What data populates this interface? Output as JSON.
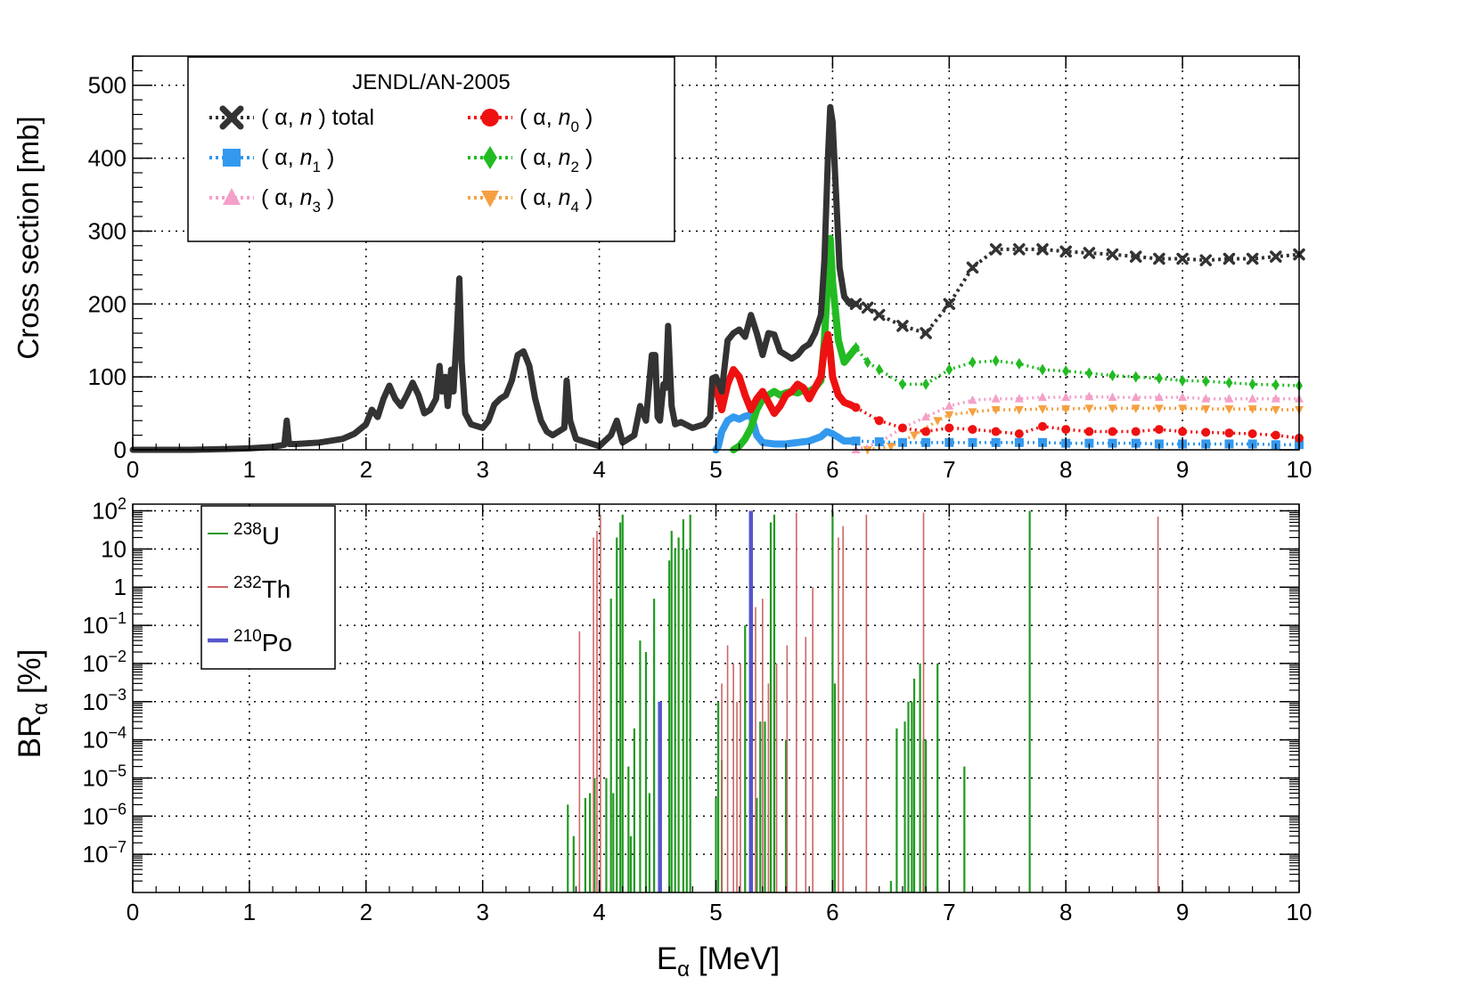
{
  "chart_data": [
    {
      "type": "line",
      "title": "",
      "xlabel": "",
      "ylabel": "Cross section [mb]",
      "xlim": [
        0,
        10
      ],
      "ylim": [
        0,
        540
      ],
      "grid": true,
      "x_ticks": [
        0,
        1,
        2,
        3,
        4,
        5,
        6,
        7,
        8,
        9,
        10
      ],
      "x_tick_labels": [
        "0",
        "1",
        "2",
        "3",
        "4",
        "5",
        "6",
        "7",
        "8",
        "9",
        "10"
      ],
      "y_ticks": [
        0,
        100,
        200,
        300,
        400,
        500
      ],
      "y_tick_labels": [
        "0",
        "100",
        "200",
        "300",
        "400",
        "500"
      ],
      "legend": {
        "title": "JENDL/AN-2005",
        "position": "top-left",
        "entries": [
          {
            "id": "total",
            "pre": "( α, ",
            "italic": "n",
            "sub": "",
            "post": " ) total",
            "color": "#333333",
            "marker": "x"
          },
          {
            "id": "n0",
            "pre": "( α, ",
            "italic": "n",
            "sub": "0",
            "post": " )",
            "color": "#ee1111",
            "marker": "circle"
          },
          {
            "id": "n1",
            "pre": "( α, ",
            "italic": "n",
            "sub": "1",
            "post": " )",
            "color": "#3399ee",
            "marker": "square"
          },
          {
            "id": "n2",
            "pre": "( α, ",
            "italic": "n",
            "sub": "2",
            "post": " )",
            "color": "#22bb22",
            "marker": "diamond"
          },
          {
            "id": "n3",
            "pre": "( α, ",
            "italic": "n",
            "sub": "3",
            "post": " )",
            "color": "#f4a0c8",
            "marker": "triangle-up"
          },
          {
            "id": "n4",
            "pre": "( α, ",
            "italic": "n",
            "sub": "4",
            "post": " )",
            "color": "#f5a040",
            "marker": "triangle-down"
          }
        ]
      },
      "series": [
        {
          "name": "(α, n) total",
          "id": "total",
          "color": "#333333",
          "x": [
            0.0,
            0.5,
            0.8,
            1.0,
            1.2,
            1.3,
            1.32,
            1.34,
            1.4,
            1.6,
            1.8,
            1.9,
            2.0,
            2.05,
            2.1,
            2.15,
            2.2,
            2.25,
            2.3,
            2.35,
            2.4,
            2.45,
            2.5,
            2.55,
            2.6,
            2.63,
            2.65,
            2.68,
            2.7,
            2.73,
            2.75,
            2.78,
            2.8,
            2.82,
            2.85,
            2.9,
            3.0,
            3.05,
            3.1,
            3.15,
            3.2,
            3.25,
            3.3,
            3.35,
            3.4,
            3.45,
            3.5,
            3.55,
            3.6,
            3.65,
            3.7,
            3.72,
            3.75,
            3.8,
            3.9,
            4.0,
            4.1,
            4.15,
            4.2,
            4.3,
            4.35,
            4.4,
            4.45,
            4.48,
            4.5,
            4.52,
            4.55,
            4.57,
            4.59,
            4.62,
            4.65,
            4.7,
            4.8,
            4.9,
            4.95,
            4.97,
            5.0,
            5.05,
            5.1,
            5.15,
            5.2,
            5.25,
            5.3,
            5.35,
            5.4,
            5.45,
            5.5,
            5.55,
            5.6,
            5.65,
            5.7,
            5.75,
            5.8,
            5.85,
            5.9,
            5.93,
            5.96,
            5.98,
            6.0,
            6.03,
            6.06,
            6.1,
            6.15,
            6.2,
            6.3,
            6.4,
            6.6,
            6.8,
            7.0,
            7.2,
            7.4,
            7.6,
            7.8,
            8.0,
            8.2,
            8.4,
            8.6,
            8.8,
            9.0,
            9.2,
            9.4,
            9.6,
            9.8,
            10.0
          ],
          "y": [
            0,
            0,
            1,
            2,
            4,
            7,
            40,
            8,
            8,
            10,
            15,
            22,
            35,
            55,
            45,
            70,
            88,
            70,
            60,
            75,
            92,
            75,
            50,
            55,
            70,
            115,
            80,
            100,
            60,
            110,
            80,
            165,
            235,
            120,
            50,
            35,
            30,
            40,
            62,
            70,
            75,
            95,
            130,
            135,
            115,
            70,
            40,
            25,
            20,
            25,
            30,
            95,
            40,
            15,
            10,
            5,
            20,
            40,
            10,
            20,
            60,
            40,
            130,
            130,
            45,
            40,
            90,
            85,
            170,
            60,
            35,
            38,
            30,
            35,
            45,
            98,
            100,
            80,
            150,
            160,
            165,
            155,
            185,
            160,
            130,
            160,
            158,
            135,
            130,
            125,
            130,
            140,
            145,
            160,
            185,
            260,
            400,
            470,
            450,
            350,
            250,
            210,
            200,
            200,
            195,
            185,
            170,
            160,
            200,
            250,
            275,
            275,
            275,
            272,
            270,
            268,
            265,
            262,
            262,
            260,
            262,
            262,
            265,
            268
          ]
        },
        {
          "name": "(α, n0)",
          "id": "n0",
          "color": "#ee1111",
          "x": [
            5.0,
            5.05,
            5.1,
            5.15,
            5.2,
            5.25,
            5.3,
            5.35,
            5.4,
            5.45,
            5.5,
            5.55,
            5.6,
            5.65,
            5.7,
            5.75,
            5.8,
            5.85,
            5.9,
            5.93,
            5.96,
            5.98,
            6.0,
            6.05,
            6.1,
            6.15,
            6.2,
            6.4,
            6.6,
            6.8,
            7.0,
            7.2,
            7.4,
            7.6,
            7.8,
            8.0,
            8.2,
            8.4,
            8.6,
            8.8,
            9.0,
            9.2,
            9.4,
            9.6,
            9.8,
            10.0
          ],
          "y": [
            85,
            55,
            90,
            110,
            100,
            75,
            55,
            70,
            80,
            65,
            50,
            60,
            75,
            80,
            90,
            85,
            70,
            85,
            100,
            140,
            158,
            135,
            100,
            75,
            65,
            62,
            58,
            40,
            30,
            25,
            30,
            28,
            25,
            22,
            32,
            28,
            25,
            25,
            25,
            28,
            25,
            24,
            23,
            22,
            20,
            16
          ]
        },
        {
          "name": "(α, n1)",
          "id": "n1",
          "color": "#3399ee",
          "x": [
            5.0,
            5.02,
            5.05,
            5.1,
            5.15,
            5.2,
            5.25,
            5.3,
            5.35,
            5.4,
            5.5,
            5.6,
            5.7,
            5.8,
            5.9,
            5.95,
            6.0,
            6.1,
            6.2,
            6.4,
            6.6,
            6.8,
            7.0,
            7.2,
            7.4,
            7.6,
            7.8,
            8.0,
            8.2,
            8.4,
            8.6,
            8.8,
            9.0,
            9.2,
            9.4,
            9.6,
            9.8,
            10.0
          ],
          "y": [
            0,
            5,
            25,
            40,
            45,
            42,
            46,
            48,
            20,
            10,
            8,
            8,
            10,
            12,
            18,
            25,
            22,
            12,
            12,
            11,
            10,
            10,
            10,
            10,
            10,
            10,
            10,
            9,
            9,
            9,
            9,
            8,
            8,
            8,
            8,
            8,
            7,
            7
          ]
        },
        {
          "name": "(α, n2)",
          "id": "n2",
          "color": "#22bb22",
          "x": [
            5.15,
            5.2,
            5.25,
            5.3,
            5.35,
            5.4,
            5.45,
            5.5,
            5.55,
            5.6,
            5.65,
            5.7,
            5.75,
            5.8,
            5.85,
            5.9,
            5.93,
            5.96,
            5.98,
            6.0,
            6.05,
            6.1,
            6.15,
            6.2,
            6.3,
            6.4,
            6.6,
            6.8,
            7.0,
            7.2,
            7.4,
            7.6,
            7.8,
            8.0,
            8.2,
            8.4,
            8.6,
            8.8,
            9.0,
            9.2,
            9.4,
            9.6,
            9.8,
            10.0
          ],
          "y": [
            0,
            5,
            15,
            30,
            55,
            70,
            75,
            80,
            75,
            78,
            80,
            78,
            82,
            80,
            85,
            95,
            150,
            240,
            290,
            230,
            150,
            120,
            130,
            140,
            120,
            110,
            90,
            90,
            110,
            120,
            122,
            118,
            110,
            108,
            105,
            102,
            100,
            98,
            95,
            94,
            92,
            90,
            89,
            88
          ]
        },
        {
          "name": "(α, n3)",
          "id": "n3",
          "color": "#f4a0c8",
          "x": [
            6.2,
            6.4,
            6.6,
            6.8,
            7.0,
            7.2,
            7.4,
            7.6,
            7.8,
            8.0,
            8.2,
            8.4,
            8.6,
            8.8,
            9.0,
            9.2,
            9.4,
            9.6,
            9.8,
            10.0
          ],
          "y": [
            0,
            10,
            30,
            45,
            60,
            68,
            70,
            70,
            72,
            72,
            73,
            72,
            72,
            72,
            72,
            70,
            70,
            70,
            70,
            70
          ]
        },
        {
          "name": "(α, n4)",
          "id": "n4",
          "color": "#f5a040",
          "x": [
            6.3,
            6.5,
            6.7,
            6.9,
            7.0,
            7.2,
            7.4,
            7.6,
            7.8,
            8.0,
            8.2,
            8.4,
            8.6,
            8.8,
            9.0,
            9.2,
            9.4,
            9.6,
            9.8,
            10.0
          ],
          "y": [
            0,
            5,
            20,
            40,
            48,
            52,
            55,
            55,
            56,
            56,
            57,
            57,
            57,
            57,
            57,
            56,
            56,
            56,
            55,
            55
          ]
        }
      ]
    },
    {
      "type": "bar",
      "title": "",
      "xlabel_base": "E",
      "xlabel_sub": "α",
      "xlabel_post": " [MeV]",
      "ylabel_base": "BR",
      "ylabel_sub": "α",
      "ylabel_post": " [%]",
      "y_scale": "log",
      "xlim": [
        0,
        10
      ],
      "ylim": [
        1e-08,
        150
      ],
      "grid": true,
      "x_ticks": [
        0,
        1,
        2,
        3,
        4,
        5,
        6,
        7,
        8,
        9,
        10
      ],
      "x_tick_labels": [
        "0",
        "1",
        "2",
        "3",
        "4",
        "5",
        "6",
        "7",
        "8",
        "9",
        "10"
      ],
      "y_ticks": [
        {
          "value": 100,
          "base": "10",
          "exp": "2",
          "plain": ""
        },
        {
          "value": 10,
          "base": "",
          "exp": "",
          "plain": "10"
        },
        {
          "value": 1,
          "base": "",
          "exp": "",
          "plain": "1"
        },
        {
          "value": 0.1,
          "base": "10",
          "exp": "−1",
          "plain": ""
        },
        {
          "value": 0.01,
          "base": "10",
          "exp": "−2",
          "plain": ""
        },
        {
          "value": 0.001,
          "base": "10",
          "exp": "−3",
          "plain": ""
        },
        {
          "value": 0.0001,
          "base": "10",
          "exp": "−4",
          "plain": ""
        },
        {
          "value": 1e-05,
          "base": "10",
          "exp": "−5",
          "plain": ""
        },
        {
          "value": 1e-06,
          "base": "10",
          "exp": "−6",
          "plain": ""
        },
        {
          "value": 1e-07,
          "base": "10",
          "exp": "−7",
          "plain": ""
        }
      ],
      "legend": {
        "position": "top-left",
        "entries": [
          {
            "id": "u238",
            "mass": "238",
            "element": "U",
            "color": "#229922"
          },
          {
            "id": "th232",
            "mass": "232",
            "element": "Th",
            "color": "#cc6666"
          },
          {
            "id": "po210",
            "mass": "210",
            "element": "Po",
            "color": "#5555cc"
          }
        ]
      },
      "series": [
        {
          "name": "238U",
          "id": "u238",
          "color": "#229922",
          "line_width": 2.2,
          "x": [
            3.73,
            3.78,
            3.88,
            3.92,
            3.96,
            4.06,
            4.1,
            4.12,
            4.15,
            4.18,
            4.2,
            4.25,
            4.27,
            4.3,
            4.35,
            4.4,
            4.43,
            4.47,
            4.6,
            4.62,
            4.65,
            4.68,
            4.72,
            4.75,
            4.78,
            5.0,
            5.02,
            5.05,
            5.25,
            5.3,
            5.35,
            5.38,
            5.42,
            5.47,
            5.5,
            5.6,
            6.0,
            6.02,
            6.5,
            6.55,
            6.62,
            6.65,
            6.68,
            6.7,
            6.75,
            6.78,
            6.8,
            6.9,
            7.13,
            7.69
          ],
          "y": [
            2e-06,
            3e-07,
            3e-06,
            4e-06,
            1e-05,
            1e-05,
            0.5,
            4e-06,
            20,
            50,
            80,
            2e-05,
            3e-07,
            0.0002,
            0.04,
            0.02,
            4e-06,
            0.5,
            5,
            30,
            10,
            20,
            60,
            10,
            80,
            3e-06,
            0.001,
            3e-05,
            0.1,
            3e-07,
            3e-06,
            0.0003,
            0.0003,
            50,
            80,
            0.0001,
            100,
            0.003,
            2e-08,
            0.0002,
            0.0003,
            0.001,
            0.001,
            0.004,
            0.01,
            0.0001,
            0.0001,
            0.01,
            2e-05,
            100
          ]
        },
        {
          "name": "232Th",
          "id": "th232",
          "color": "#cc6666",
          "line_width": 1.6,
          "x": [
            3.83,
            3.95,
            3.98,
            4.01,
            5.05,
            5.1,
            5.15,
            5.18,
            5.21,
            5.34,
            5.4,
            5.45,
            5.52,
            5.61,
            5.69,
            5.77,
            5.83,
            6.05,
            6.09,
            6.29,
            6.78,
            8.79
          ],
          "y": [
            0.07,
            20,
            30,
            80,
            0.003,
            0.03,
            0.01,
            0.001,
            0.01,
            0.3,
            0.5,
            0.003,
            0.01,
            0.03,
            90,
            0.05,
            1,
            20,
            40,
            80,
            90,
            70
          ]
        },
        {
          "name": "210Po",
          "id": "po210",
          "color": "#5555cc",
          "line_width": 4.5,
          "x": [
            4.52,
            5.3
          ],
          "y": [
            0.001,
            100
          ]
        }
      ]
    }
  ]
}
